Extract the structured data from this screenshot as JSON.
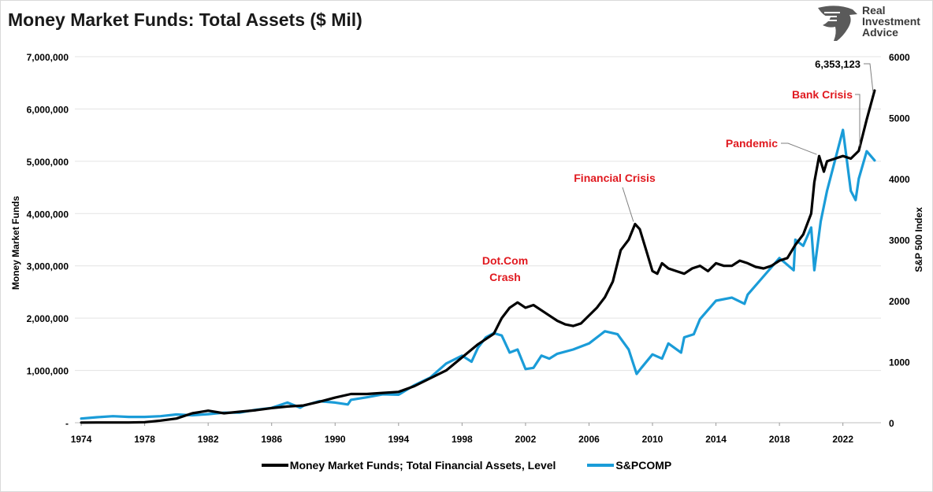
{
  "title": "Money Market Funds: Total Assets ($ Mil)",
  "logo": {
    "lines": [
      "Real",
      "Investment",
      "Advice"
    ]
  },
  "chart_data": {
    "type": "line",
    "title": "Money Market Funds: Total Assets ($ Mil)",
    "ylabel": "Money Market Funds",
    "y2label": "S&P 500 Index",
    "xlim": [
      1973.6,
      2024.4
    ],
    "ylim": [
      0,
      7000000
    ],
    "y2lim": [
      0,
      6000
    ],
    "x_ticks": [
      "1974",
      "1978",
      "1982",
      "1986",
      "1990",
      "1994",
      "1998",
      "2002",
      "2006",
      "2010",
      "2014",
      "2018",
      "2022"
    ],
    "y_ticks": [
      "-",
      "1,000,000",
      "2,000,000",
      "3,000,000",
      "4,000,000",
      "5,000,000",
      "6,000,000",
      "7,000,000"
    ],
    "y2_ticks": [
      "0",
      "1000",
      "2000",
      "3000",
      "4000",
      "5000",
      "6000"
    ],
    "grid": true,
    "legend_position": "bottom",
    "series": [
      {
        "name": "Money Market Funds; Total Financial Assets, Level",
        "color": "#000000",
        "axis": "left",
        "x": [
          1974,
          1975,
          1976,
          1977,
          1978,
          1979,
          1980,
          1981,
          1982,
          1983,
          1984,
          1985,
          1986,
          1987,
          1988,
          1989,
          1990,
          1991,
          1992,
          1993,
          1994,
          1995,
          1996,
          1997,
          1998,
          1999,
          2000,
          2000.5,
          2001,
          2001.5,
          2002,
          2002.5,
          2003,
          2003.5,
          2004,
          2004.5,
          2005,
          2005.5,
          2006,
          2006.5,
          2007,
          2007.5,
          2008,
          2008.5,
          2008.9,
          2009.2,
          2009.6,
          2010,
          2010.3,
          2010.6,
          2011,
          2011.5,
          2012,
          2012.5,
          2013,
          2013.5,
          2014,
          2014.5,
          2015,
          2015.5,
          2016,
          2016.5,
          2017,
          2017.5,
          2018,
          2018.5,
          2019,
          2019.5,
          2020,
          2020.2,
          2020.5,
          2020.8,
          2021,
          2021.5,
          2022,
          2022.5,
          2023,
          2023.5,
          2024
        ],
        "y": [
          3000,
          4000,
          4000,
          4000,
          10000,
          40000,
          80000,
          180000,
          230000,
          180000,
          210000,
          240000,
          280000,
          310000,
          330000,
          400000,
          480000,
          550000,
          550000,
          570000,
          590000,
          700000,
          850000,
          1000000,
          1250000,
          1500000,
          1700000,
          2000000,
          2200000,
          2300000,
          2200000,
          2250000,
          2150000,
          2050000,
          1950000,
          1880000,
          1850000,
          1900000,
          2050000,
          2200000,
          2400000,
          2700000,
          3300000,
          3500000,
          3800000,
          3700000,
          3300000,
          2900000,
          2850000,
          3050000,
          2950000,
          2900000,
          2850000,
          2950000,
          3000000,
          2900000,
          3050000,
          3000000,
          3000000,
          3100000,
          3050000,
          2980000,
          2950000,
          3000000,
          3100000,
          3150000,
          3400000,
          3600000,
          4000000,
          4600000,
          5100000,
          4800000,
          5000000,
          5050000,
          5100000,
          5050000,
          5200000,
          5800000,
          6353123
        ]
      },
      {
        "name": "S&PCOMP",
        "color": "#1a9cd8",
        "axis": "right",
        "x": [
          1974,
          1975,
          1976,
          1977,
          1978,
          1979,
          1980,
          1981,
          1982,
          1983,
          1984,
          1985,
          1986,
          1987,
          1987.8,
          1988,
          1989,
          1990,
          1990.8,
          1991,
          1992,
          1993,
          1994,
          1995,
          1996,
          1997,
          1998,
          1998.6,
          1999,
          1999.5,
          2000,
          2000.5,
          2001,
          2001.5,
          2002,
          2002.5,
          2003,
          2003.5,
          2004,
          2005,
          2006,
          2007,
          2007.8,
          2008.5,
          2009,
          2009.3,
          2010,
          2010.6,
          2011,
          2011.8,
          2012,
          2012.6,
          2013,
          2014,
          2015,
          2015.8,
          2016,
          2017,
          2018,
          2018.9,
          2019,
          2019.5,
          2020,
          2020.2,
          2020.6,
          2021,
          2021.5,
          2022,
          2022.5,
          2022.8,
          2023,
          2023.5,
          2024
        ],
        "y": [
          68,
          90,
          107,
          96,
          96,
          107,
          136,
          122,
          141,
          165,
          167,
          211,
          242,
          330,
          247,
          277,
          353,
          330,
          300,
          376,
          417,
          466,
          459,
          616,
          740,
          970,
          1100,
          1000,
          1229,
          1400,
          1469,
          1430,
          1150,
          1200,
          880,
          900,
          1100,
          1050,
          1130,
          1200,
          1300,
          1500,
          1450,
          1200,
          800,
          900,
          1120,
          1050,
          1300,
          1150,
          1400,
          1450,
          1700,
          2000,
          2050,
          1950,
          2100,
          2400,
          2700,
          2500,
          3000,
          2900,
          3200,
          2500,
          3300,
          3800,
          4300,
          4800,
          3800,
          3650,
          4000,
          4450,
          4300
        ]
      }
    ],
    "annotations": [
      {
        "text": "6,353,123",
        "color": "#000000"
      },
      {
        "text": "Bank Crisis",
        "color": "#e0191f"
      },
      {
        "text": "Pandemic",
        "color": "#e0191f"
      },
      {
        "text": "Financial Crisis",
        "color": "#e0191f"
      },
      {
        "text": "Dot.Com",
        "color": "#e0191f"
      },
      {
        "text": "Crash",
        "color": "#e0191f"
      }
    ]
  }
}
